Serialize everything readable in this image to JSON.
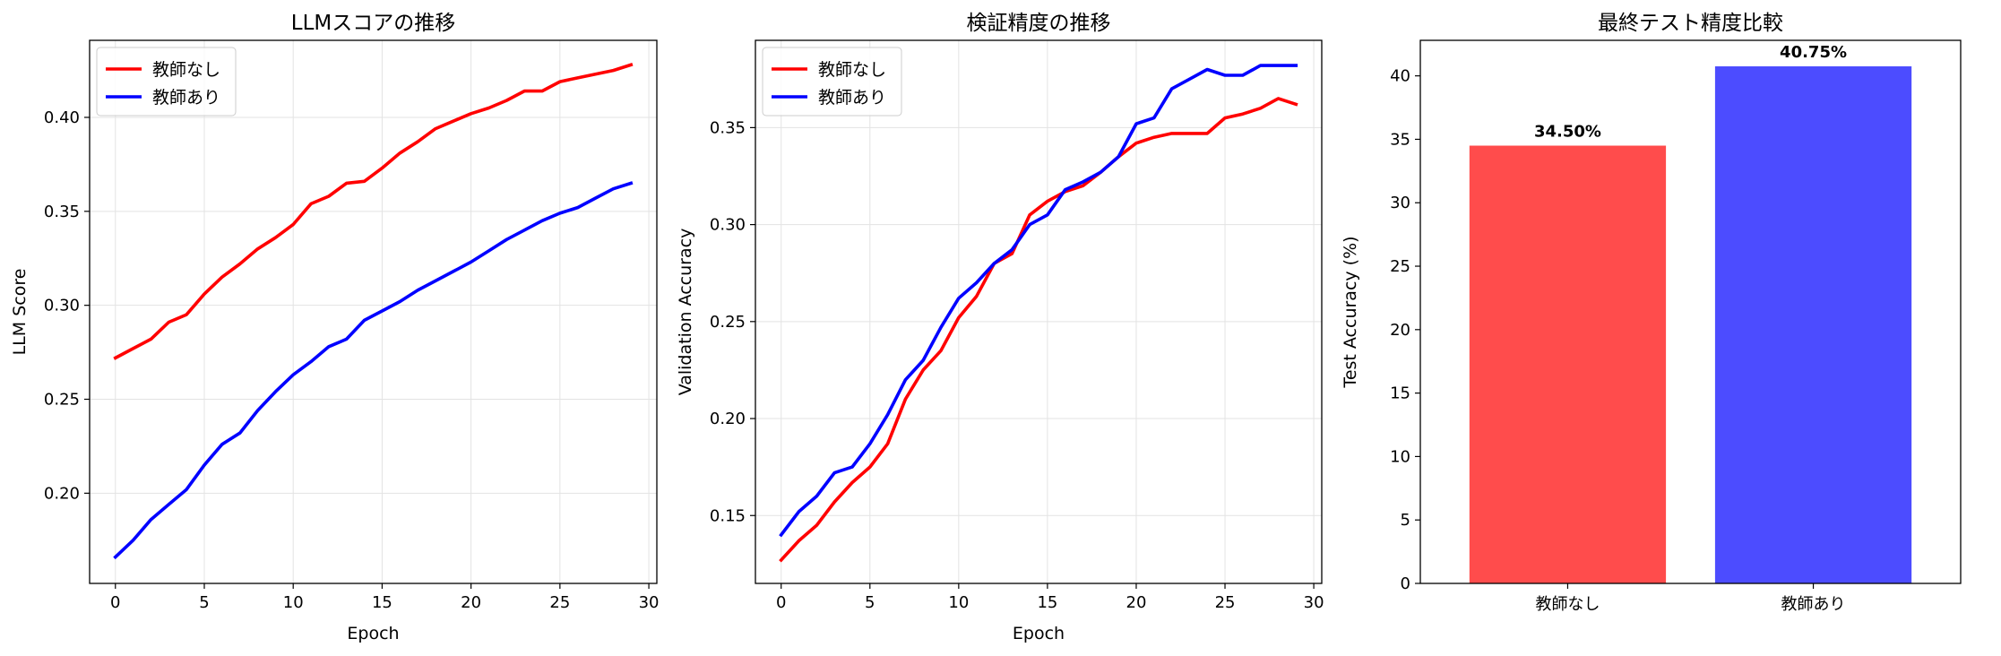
{
  "chart_data": [
    {
      "type": "line",
      "title": "LLMスコアの推移",
      "xlabel": "Epoch",
      "ylabel": "LLM Score",
      "xlim": [
        -1.45,
        30.45
      ],
      "ylim": [
        0.152,
        0.441
      ],
      "xticks": [
        0,
        5,
        10,
        15,
        20,
        25,
        30
      ],
      "yticks": [
        0.2,
        0.25,
        0.3,
        0.35,
        0.4
      ],
      "ytick_labels": [
        "0.20",
        "0.25",
        "0.30",
        "0.35",
        "0.40"
      ],
      "grid": true,
      "legend_position": "top-left",
      "x": [
        0,
        1,
        2,
        3,
        4,
        5,
        6,
        7,
        8,
        9,
        10,
        11,
        12,
        13,
        14,
        15,
        16,
        17,
        18,
        19,
        20,
        21,
        22,
        23,
        24,
        25,
        26,
        27,
        28,
        29
      ],
      "series": [
        {
          "name": "教師なし",
          "color": "#ff0000",
          "values": [
            0.272,
            0.277,
            0.282,
            0.291,
            0.295,
            0.306,
            0.315,
            0.322,
            0.33,
            0.336,
            0.343,
            0.354,
            0.358,
            0.365,
            0.366,
            0.373,
            0.381,
            0.387,
            0.394,
            0.398,
            0.402,
            0.405,
            0.409,
            0.414,
            0.414,
            0.419,
            0.421,
            0.423,
            0.425,
            0.428
          ]
        },
        {
          "name": "教師あり",
          "color": "#0000ff",
          "values": [
            0.166,
            0.175,
            0.186,
            0.194,
            0.202,
            0.215,
            0.226,
            0.232,
            0.244,
            0.254,
            0.263,
            0.27,
            0.278,
            0.282,
            0.292,
            0.297,
            0.302,
            0.308,
            0.313,
            0.318,
            0.323,
            0.329,
            0.335,
            0.34,
            0.345,
            0.349,
            0.352,
            0.357,
            0.362,
            0.365
          ]
        }
      ]
    },
    {
      "type": "line",
      "title": "検証精度の推移",
      "xlabel": "Epoch",
      "ylabel": "Validation Accuracy",
      "xlim": [
        -1.45,
        30.45
      ],
      "ylim": [
        0.115,
        0.395
      ],
      "xticks": [
        0,
        5,
        10,
        15,
        20,
        25,
        30
      ],
      "yticks": [
        0.15,
        0.2,
        0.25,
        0.3,
        0.35
      ],
      "ytick_labels": [
        "0.15",
        "0.20",
        "0.25",
        "0.30",
        "0.35"
      ],
      "grid": true,
      "legend_position": "top-left",
      "x": [
        0,
        1,
        2,
        3,
        4,
        5,
        6,
        7,
        8,
        9,
        10,
        11,
        12,
        13,
        14,
        15,
        16,
        17,
        18,
        19,
        20,
        21,
        22,
        23,
        24,
        25,
        26,
        27,
        28,
        29
      ],
      "series": [
        {
          "name": "教師なし",
          "color": "#ff0000",
          "values": [
            0.127,
            0.137,
            0.145,
            0.157,
            0.167,
            0.175,
            0.187,
            0.21,
            0.225,
            0.235,
            0.252,
            0.263,
            0.28,
            0.285,
            0.305,
            0.312,
            0.317,
            0.32,
            0.327,
            0.335,
            0.342,
            0.345,
            0.347,
            0.347,
            0.347,
            0.355,
            0.357,
            0.36,
            0.365,
            0.362
          ]
        },
        {
          "name": "教師あり",
          "color": "#0000ff",
          "values": [
            0.14,
            0.152,
            0.16,
            0.172,
            0.175,
            0.187,
            0.202,
            0.22,
            0.23,
            0.247,
            0.262,
            0.27,
            0.28,
            0.287,
            0.3,
            0.305,
            0.318,
            0.322,
            0.327,
            0.335,
            0.352,
            0.355,
            0.37,
            0.375,
            0.38,
            0.377,
            0.377,
            0.382,
            0.382,
            0.382
          ]
        }
      ]
    },
    {
      "type": "bar",
      "title": "最終テスト精度比較",
      "xlabel": "",
      "ylabel": "Test Accuracy (%)",
      "ylim": [
        0,
        42.8
      ],
      "yticks": [
        0,
        5,
        10,
        15,
        20,
        25,
        30,
        35,
        40
      ],
      "ytick_labels": [
        "0",
        "5",
        "10",
        "15",
        "20",
        "25",
        "30",
        "35",
        "40"
      ],
      "grid": false,
      "categories": [
        "教師なし",
        "教師あり"
      ],
      "values": [
        34.5,
        40.75
      ],
      "value_labels": [
        "34.50%",
        "40.75%"
      ],
      "colors": [
        "#ff4c4c",
        "#4c4cff"
      ]
    }
  ]
}
